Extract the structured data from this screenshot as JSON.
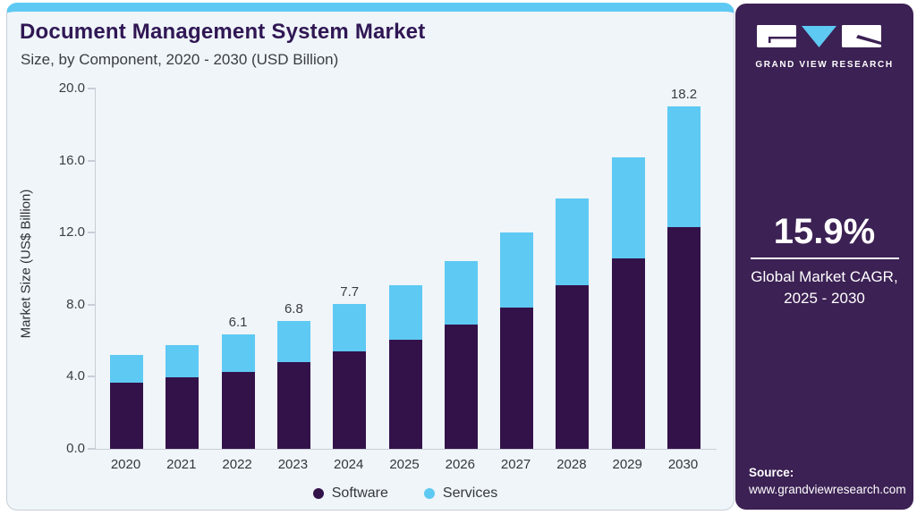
{
  "header": {
    "title": "Document Management System Market",
    "subtitle": "Size, by Component, 2020 - 2030 (USD Billion)"
  },
  "chart_data": {
    "type": "bar",
    "stacked": true,
    "title": "Document Management System Market Size, by Component, 2020 - 2030 (USD Billion)",
    "categories": [
      "2020",
      "2021",
      "2022",
      "2023",
      "2024",
      "2025",
      "2026",
      "2027",
      "2028",
      "2029",
      "2030"
    ],
    "series": [
      {
        "name": "Software",
        "color": "#33124a",
        "values": [
          3.5,
          3.8,
          4.1,
          4.6,
          5.2,
          5.8,
          6.6,
          7.5,
          8.7,
          10.1,
          11.8
        ]
      },
      {
        "name": "Services",
        "color": "#5ec9f3",
        "values": [
          1.5,
          1.7,
          2.0,
          2.2,
          2.5,
          2.9,
          3.4,
          4.0,
          4.6,
          5.4,
          6.4
        ]
      }
    ],
    "totals": [
      5.0,
      5.5,
      6.1,
      6.8,
      7.7,
      8.7,
      10.0,
      11.5,
      13.3,
      15.5,
      18.2
    ],
    "total_labels": [
      "",
      "",
      "6.1",
      "6.8",
      "7.7",
      "",
      "",
      "",
      "",
      "",
      "18.2"
    ],
    "xlabel": "",
    "ylabel": "Market Size (US$ Billion)",
    "ylim": [
      0,
      20
    ],
    "yticks": [
      "0.0",
      "4.0",
      "8.0",
      "12.0",
      "16.0",
      "20.0"
    ],
    "grid": false,
    "legend_position": "bottom"
  },
  "sidebar": {
    "logo_text": "GRAND VIEW RESEARCH",
    "cagr_value": "15.9%",
    "cagr_caption_line1": "Global Market CAGR,",
    "cagr_caption_line2": "2025 - 2030",
    "source_label": "Source:",
    "source_url": "www.grandviewresearch.com"
  },
  "colors": {
    "accent_blue": "#5ec9f3",
    "software_purple": "#33124a",
    "panel_purple": "#3c2154",
    "title_purple": "#301754",
    "card_background": "#eff5f9",
    "axis_line": "#c9ced6",
    "text_dark": "#3a3d42"
  }
}
